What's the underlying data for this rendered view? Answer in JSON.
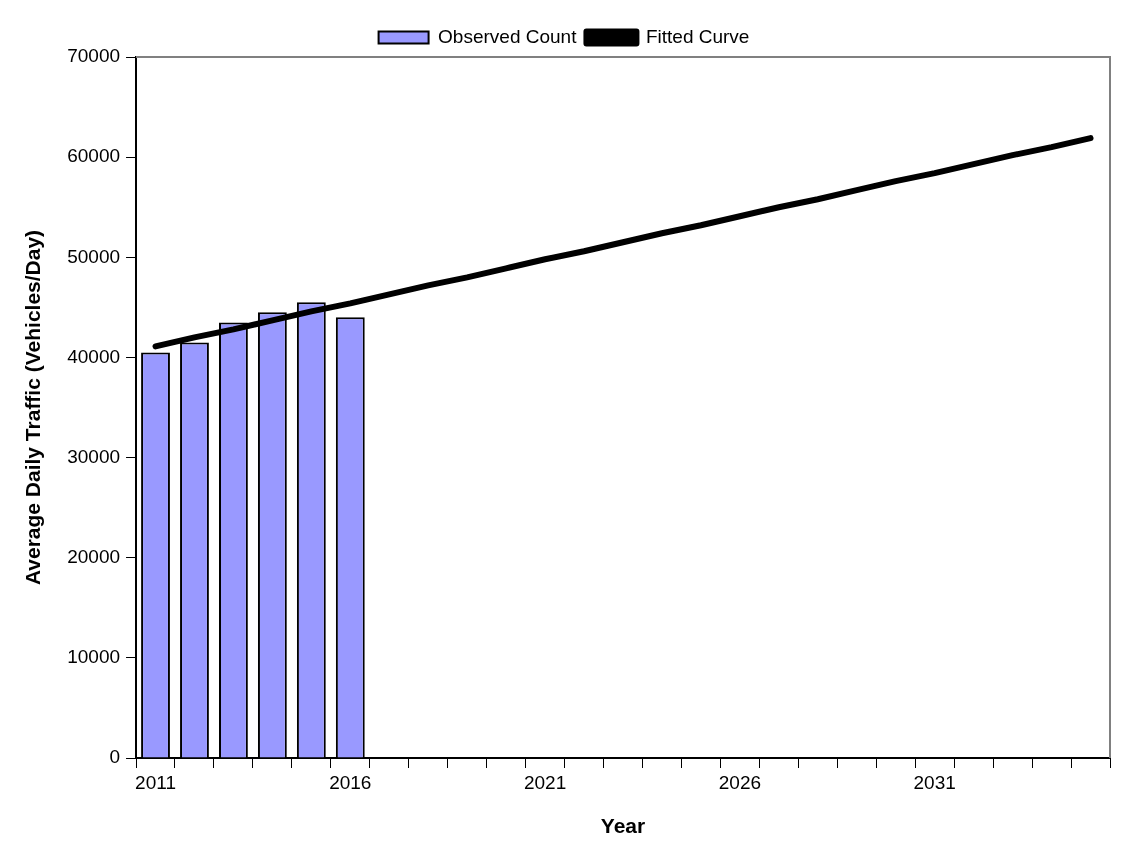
{
  "chart_data": {
    "type": "bar",
    "xlabel": "Year",
    "ylabel": "Average Daily Traffic (Vehicles/Day)",
    "categories": [
      "2011",
      null,
      null,
      null,
      null,
      "2016",
      null,
      null,
      null,
      null,
      "2021",
      null,
      null,
      null,
      null,
      "2026",
      null,
      null,
      null,
      null,
      "2031",
      null,
      null,
      null,
      null
    ],
    "series": [
      {
        "name": "Observed Count",
        "color": "#9999ff",
        "values": [
          40500,
          41500,
          43500,
          44500,
          45500,
          44000,
          null,
          null,
          null,
          null,
          null,
          null,
          null,
          null,
          null,
          null,
          null,
          null,
          null,
          null,
          null,
          null,
          null,
          null,
          null
        ]
      },
      {
        "name": "Fitted Curve",
        "type": "line",
        "color": "#000000",
        "values": [
          41100,
          42000,
          42800,
          43700,
          44600,
          45400,
          46300,
          47200,
          48000,
          48900,
          49800,
          50600,
          51500,
          52400,
          53200,
          54100,
          55000,
          55800,
          56700,
          57600,
          58400,
          59300,
          60200,
          61000,
          61900
        ]
      }
    ],
    "ylim": [
      0,
      70000
    ],
    "yticks": [
      0,
      10000,
      20000,
      30000,
      40000,
      50000,
      60000,
      70000
    ],
    "grid": false,
    "legend": "top",
    "marker": "none",
    "line_style": "solid"
  }
}
